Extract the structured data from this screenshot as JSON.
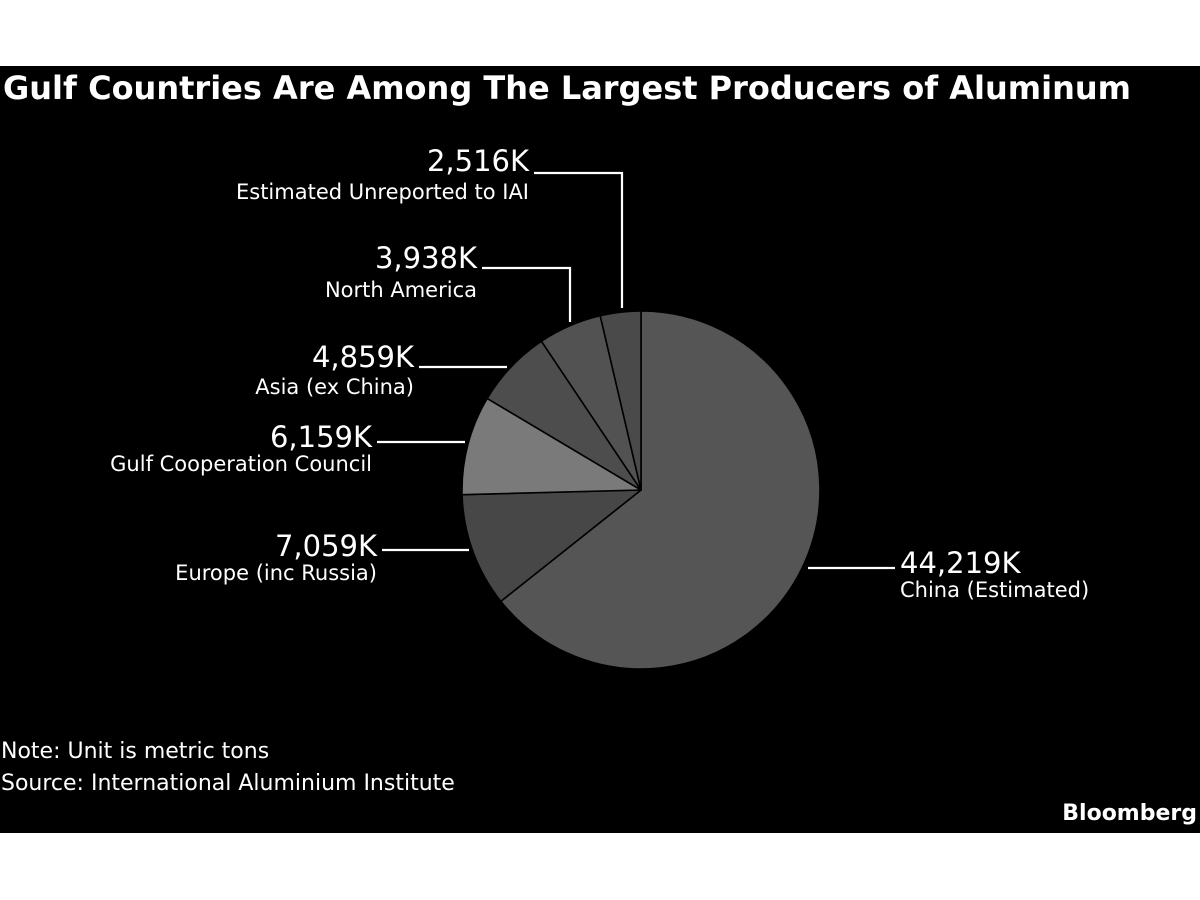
{
  "chart_data": {
    "type": "pie",
    "title": "Gulf Countries Are Among The Largest Producers of Aluminum",
    "slices": [
      {
        "label": "China (Estimated)",
        "value": 44219,
        "display": "44,219K",
        "color": "#555555"
      },
      {
        "label": "Europe (inc Russia)",
        "value": 7059,
        "display": "7,059K",
        "color": "#474747"
      },
      {
        "label": "Gulf Cooperation Council",
        "value": 6159,
        "display": "6,159K",
        "color": "#7a7a7a"
      },
      {
        "label": "Asia (ex China)",
        "value": 4859,
        "display": "4,859K",
        "color": "#4d4d4d"
      },
      {
        "label": "North America",
        "value": 3938,
        "display": "3,938K",
        "color": "#525252"
      },
      {
        "label": "Estimated Unreported to IAI",
        "value": 2516,
        "display": "2,516K",
        "color": "#4a4a4a"
      }
    ],
    "slice_border_color": "#000000",
    "legend": "none"
  },
  "footer": {
    "note": "Note: Unit is metric tons",
    "source": "Source: International Aluminium Institute",
    "logo": "Bloomberg"
  },
  "colors": {
    "background": "#000000",
    "text": "#ffffff"
  }
}
